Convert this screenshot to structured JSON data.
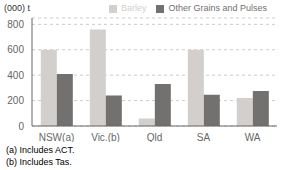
{
  "chart_data": {
    "type": "bar",
    "ylabel": "(000) t",
    "categories": [
      "NSW(a)",
      "Vic.(b)",
      "Qld",
      "SA",
      "WA"
    ],
    "series": [
      {
        "name": "Barley",
        "color": "#d3cfcc",
        "values": [
          600,
          760,
          60,
          600,
          220
        ]
      },
      {
        "name": "Other Grains and Pulses",
        "color": "#737070",
        "values": [
          410,
          240,
          330,
          245,
          275
        ]
      }
    ],
    "ylim": [
      0,
      850
    ],
    "yticks": [
      0,
      200,
      400,
      600,
      800
    ],
    "grid": true,
    "legend": "upper right",
    "annotations": [
      "(a) Includes ACT.",
      "(b) Includes Tas."
    ]
  }
}
